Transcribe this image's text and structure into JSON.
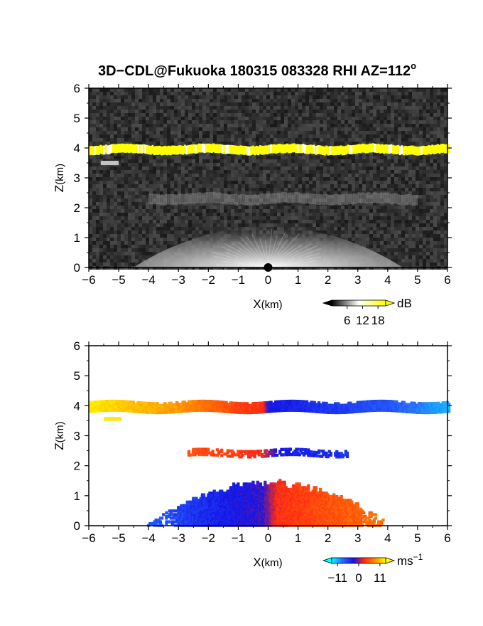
{
  "title": "3D−CDL@Fukuoka 180315 083328 RHI AZ=112",
  "title_sup": "o",
  "chart_data": [
    {
      "type": "heatmap",
      "panel": "top",
      "field": "reflectivity",
      "xlabel_main": "X",
      "xlabel_unit": "(km)",
      "ylabel_main": "Z",
      "ylabel_unit": "(km)",
      "xlim": [
        -6,
        6
      ],
      "ylim": [
        0,
        6
      ],
      "xticks": [
        "−6",
        "−5",
        "−4",
        "−3",
        "−2",
        "−1",
        "0",
        "1",
        "2",
        "3",
        "4",
        "5",
        "6"
      ],
      "yticks": [
        "0",
        "1",
        "2",
        "3",
        "4",
        "5",
        "6"
      ],
      "colorbar": {
        "unit": "dB",
        "ticks": [
          "6",
          "12",
          "18"
        ],
        "tick_values": [
          6,
          12,
          18
        ],
        "range": [
          0,
          21
        ],
        "colors": [
          "#000000",
          "#ffffff",
          "#ffff00"
        ]
      },
      "features": [
        {
          "kind": "layer",
          "x": [
            -6,
            6
          ],
          "z_center": 3.95,
          "z_thickness": 0.3,
          "value_db": 20
        },
        {
          "kind": "patch",
          "x": [
            -5.6,
            -5.0
          ],
          "z": 3.5,
          "value_db": 8
        },
        {
          "kind": "layer",
          "x": [
            -4,
            5
          ],
          "z_center": 2.3,
          "value_db": 5
        },
        {
          "kind": "fan",
          "x": [
            -4.5,
            4.5
          ],
          "z_top": 1.3,
          "origin_x": 0,
          "value_db": 12
        }
      ]
    },
    {
      "type": "heatmap",
      "panel": "bottom",
      "field": "doppler_velocity",
      "xlabel_main": "X",
      "xlabel_unit": "(km)",
      "ylabel_main": "Z",
      "ylabel_unit": "(km)",
      "xlim": [
        -6,
        6
      ],
      "ylim": [
        0,
        6
      ],
      "xticks": [
        "−6",
        "−5",
        "−4",
        "−3",
        "−2",
        "−1",
        "0",
        "1",
        "2",
        "3",
        "4",
        "5",
        "6"
      ],
      "yticks": [
        "0",
        "1",
        "2",
        "3",
        "4",
        "5",
        "6"
      ],
      "colorbar": {
        "unit": "ms",
        "unit_sup": "−1",
        "ticks": [
          "−11",
          "0",
          "11"
        ],
        "tick_values": [
          -11,
          0,
          11
        ],
        "range": [
          -14,
          14
        ],
        "colors": [
          "#00ffff",
          "#2a6bff",
          "#1414e6",
          "#ff2a14",
          "#ff8c00",
          "#ffff00"
        ]
      },
      "features": [
        {
          "kind": "layer",
          "x": [
            -6,
            6
          ],
          "z_center": 3.95,
          "z_thickness": 0.3,
          "velocity_at_x": [
            [
              -6,
              13
            ],
            [
              -3,
              9
            ],
            [
              -1,
              4
            ],
            [
              -0.2,
              3
            ],
            [
              0,
              -3
            ],
            [
              2,
              -5
            ],
            [
              4,
              -7
            ],
            [
              6,
              -11
            ]
          ]
        },
        {
          "kind": "patch",
          "x": [
            -5.5,
            -5.0
          ],
          "z": 3.55,
          "velocity": 13
        },
        {
          "kind": "layer",
          "x": [
            -2.7,
            2.6
          ],
          "z_center": 2.42,
          "velocity_at_x": [
            [
              -2.7,
              5
            ],
            [
              -0.3,
              3
            ],
            [
              0.3,
              -3
            ],
            [
              2.6,
              -5
            ]
          ]
        },
        {
          "kind": "blob",
          "x": [
            -4.3,
            3.9
          ],
          "z_top": 1.45,
          "velocity_at_x": [
            [
              -4.3,
              -8
            ],
            [
              -2,
              -4
            ],
            [
              -0.2,
              -2
            ],
            [
              0.3,
              3
            ],
            [
              2,
              5
            ],
            [
              3.9,
              7
            ]
          ]
        }
      ]
    }
  ]
}
